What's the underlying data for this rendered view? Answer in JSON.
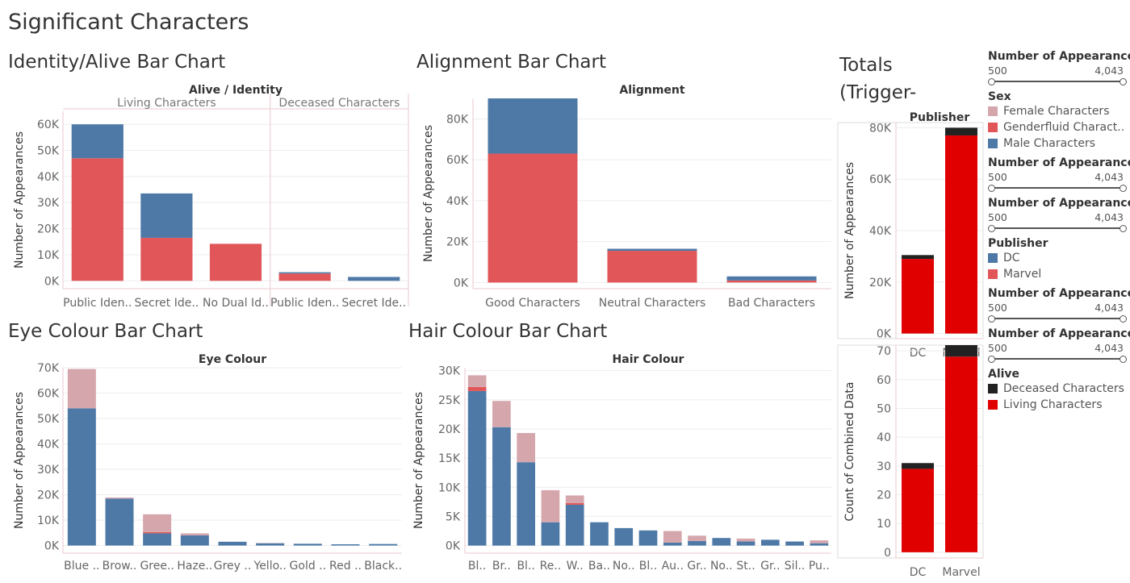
{
  "dashboard": {
    "title": "Significant Characters"
  },
  "colors": {
    "female": "#d6a6ad",
    "genderfluid": "#e15759",
    "male": "#4e79a7",
    "dc": "#4e79a7",
    "marvel": "#e15759",
    "deceased": "#222222",
    "living": "#e00000"
  },
  "legends": [
    {
      "type": "slider",
      "title": "Number of Appearances",
      "min": "500",
      "max": "4,043"
    },
    {
      "type": "color",
      "title": "Sex",
      "items": [
        {
          "label": "Female Characters",
          "color": "#d6a6ad"
        },
        {
          "label": "Genderfluid Charact..",
          "color": "#e15759"
        },
        {
          "label": "Male Characters",
          "color": "#4e79a7"
        }
      ]
    },
    {
      "type": "slider",
      "title": "Number of Appearances",
      "min": "500",
      "max": "4,043"
    },
    {
      "type": "slider",
      "title": "Number of Appearances",
      "min": "500",
      "max": "4,043"
    },
    {
      "type": "color",
      "title": "Publisher",
      "items": [
        {
          "label": "DC",
          "color": "#4e79a7"
        },
        {
          "label": "Marvel",
          "color": "#e15759"
        }
      ]
    },
    {
      "type": "slider",
      "title": "Number of Appearances",
      "min": "500",
      "max": "4,043"
    },
    {
      "type": "slider",
      "title": "Number of Appearances",
      "min": "500",
      "max": "4,043"
    },
    {
      "type": "color",
      "title": "Alive",
      "items": [
        {
          "label": "Deceased Characters",
          "color": "#222222"
        },
        {
          "label": "Living Characters",
          "color": "#e00000"
        }
      ]
    }
  ],
  "chart_data": [
    {
      "id": "identity",
      "type": "bar",
      "title": "Identity/Alive Bar Chart",
      "header": "Alive  /  Identity",
      "ylabel": "Number of Appearances",
      "ylim": [
        -3000,
        65000
      ],
      "yticks": [
        {
          "v": 0,
          "label": "0K"
        },
        {
          "v": 10000,
          "label": "10K"
        },
        {
          "v": 20000,
          "label": "20K"
        },
        {
          "v": 30000,
          "label": "30K"
        },
        {
          "v": 40000,
          "label": "40K"
        },
        {
          "v": 50000,
          "label": "50K"
        },
        {
          "v": 60000,
          "label": "60K"
        }
      ],
      "panes": [
        {
          "label": "Living Characters",
          "categories": [
            "Public Iden..",
            "Secret Ide..",
            "No Dual Id.."
          ]
        },
        {
          "label": "Deceased Characters",
          "categories": [
            "Public Iden..",
            "Secret Ide.."
          ]
        }
      ],
      "categories": [
        "Public Iden..",
        "Secret Ide..",
        "No Dual Id..",
        "Public Iden..",
        "Secret Ide.."
      ],
      "series": [
        {
          "color": "#e15759",
          "values": [
            47000,
            16500,
            14200,
            2800,
            0
          ]
        },
        {
          "color": "#4e79a7",
          "values": [
            13000,
            17000,
            0,
            500,
            1500
          ]
        }
      ]
    },
    {
      "id": "alignment",
      "type": "bar",
      "title": "Alignment Bar Chart",
      "header": "Alignment",
      "ylabel": "Number of Appearances",
      "ylim": [
        -3000,
        90000
      ],
      "yticks": [
        {
          "v": 0,
          "label": "0K"
        },
        {
          "v": 20000,
          "label": "20K"
        },
        {
          "v": 40000,
          "label": "40K"
        },
        {
          "v": 60000,
          "label": "60K"
        },
        {
          "v": 80000,
          "label": "80K"
        }
      ],
      "categories": [
        "Good Characters",
        "Neutral Characters",
        "Bad Characters"
      ],
      "series": [
        {
          "color": "#e15759",
          "values": [
            63000,
            15500,
            1000
          ]
        },
        {
          "color": "#4e79a7",
          "values": [
            27000,
            1000,
            2000
          ]
        }
      ]
    },
    {
      "id": "totals1",
      "type": "bar",
      "title": "Totals (Trigger-",
      "header": "Publisher",
      "ylabel": "Number of Appearances",
      "ylim": [
        -2000,
        82000
      ],
      "yticks": [
        {
          "v": 0,
          "label": "0K"
        },
        {
          "v": 20000,
          "label": "20K"
        },
        {
          "v": 40000,
          "label": "40K"
        },
        {
          "v": 60000,
          "label": "60K"
        },
        {
          "v": 80000,
          "label": "80K"
        }
      ],
      "categories": [
        "DC",
        "Marvel"
      ],
      "series": [
        {
          "color": "#e00000",
          "values": [
            29000,
            77000
          ]
        },
        {
          "color": "#222222",
          "values": [
            1500,
            3000
          ]
        }
      ]
    },
    {
      "id": "eye",
      "type": "bar",
      "title": "Eye Colour Bar Chart",
      "header": "Eye Colour",
      "ylabel": "Number of Appearances",
      "ylim": [
        -3000,
        70000
      ],
      "yticks": [
        {
          "v": 0,
          "label": "0K"
        },
        {
          "v": 10000,
          "label": "10K"
        },
        {
          "v": 20000,
          "label": "20K"
        },
        {
          "v": 30000,
          "label": "30K"
        },
        {
          "v": 40000,
          "label": "40K"
        },
        {
          "v": 50000,
          "label": "50K"
        },
        {
          "v": 60000,
          "label": "60K"
        },
        {
          "v": 70000,
          "label": "70K"
        }
      ],
      "categories": [
        "Blue ..",
        "Brow..",
        "Gree..",
        "Haze..",
        "Grey ..",
        "Yello..",
        "Gold ..",
        "Red ..",
        "Black.."
      ],
      "series": [
        {
          "color": "#4e79a7",
          "values": [
            54000,
            18500,
            4800,
            4000,
            1500,
            900,
            700,
            500,
            600
          ]
        },
        {
          "color": "#e15759",
          "values": [
            0,
            0,
            500,
            0,
            0,
            0,
            0,
            0,
            0
          ]
        },
        {
          "color": "#d6a6ad",
          "values": [
            15500,
            400,
            7000,
            800,
            0,
            100,
            0,
            0,
            0
          ]
        }
      ]
    },
    {
      "id": "hair",
      "type": "bar",
      "title": "Hair Colour Bar Chart",
      "header": "Hair Colour",
      "ylabel": "Number of Appearances",
      "ylim": [
        -1300,
        30500
      ],
      "yticks": [
        {
          "v": 0,
          "label": "0K"
        },
        {
          "v": 5000,
          "label": "5K"
        },
        {
          "v": 10000,
          "label": "10K"
        },
        {
          "v": 15000,
          "label": "15K"
        },
        {
          "v": 20000,
          "label": "20K"
        },
        {
          "v": 25000,
          "label": "25K"
        },
        {
          "v": 30000,
          "label": "30K"
        }
      ],
      "categories": [
        "Bl..",
        "Br..",
        "Bl..",
        "Re..",
        "W..",
        "Ba..",
        "No..",
        "Bl..",
        "Au..",
        "Gr..",
        "No..",
        "St..",
        "Gr..",
        "Sil..",
        "Pu.."
      ],
      "series": [
        {
          "color": "#4e79a7",
          "values": [
            26500,
            20300,
            14300,
            4000,
            7000,
            4000,
            3000,
            2600,
            500,
            800,
            1300,
            700,
            1000,
            700,
            400
          ]
        },
        {
          "color": "#e15759",
          "values": [
            700,
            0,
            0,
            0,
            300,
            0,
            0,
            0,
            0,
            0,
            0,
            0,
            0,
            0,
            0
          ]
        },
        {
          "color": "#d6a6ad",
          "values": [
            2000,
            4500,
            5000,
            5500,
            1300,
            0,
            0,
            0,
            2000,
            900,
            0,
            500,
            0,
            0,
            500
          ]
        }
      ]
    },
    {
      "id": "totals2",
      "type": "bar",
      "title": "",
      "header": "",
      "ylabel": "Count of Combined Data",
      "ylim": [
        -2,
        72
      ],
      "yticks": [
        {
          "v": 0,
          "label": "0"
        },
        {
          "v": 10,
          "label": "10"
        },
        {
          "v": 20,
          "label": "20"
        },
        {
          "v": 30,
          "label": "30"
        },
        {
          "v": 40,
          "label": "40"
        },
        {
          "v": 50,
          "label": "50"
        },
        {
          "v": 60,
          "label": "60"
        },
        {
          "v": 70,
          "label": "70"
        }
      ],
      "categories": [
        "DC",
        "Marvel"
      ],
      "series": [
        {
          "color": "#e00000",
          "values": [
            29,
            68
          ]
        },
        {
          "color": "#222222",
          "values": [
            2,
            4
          ]
        }
      ]
    }
  ]
}
